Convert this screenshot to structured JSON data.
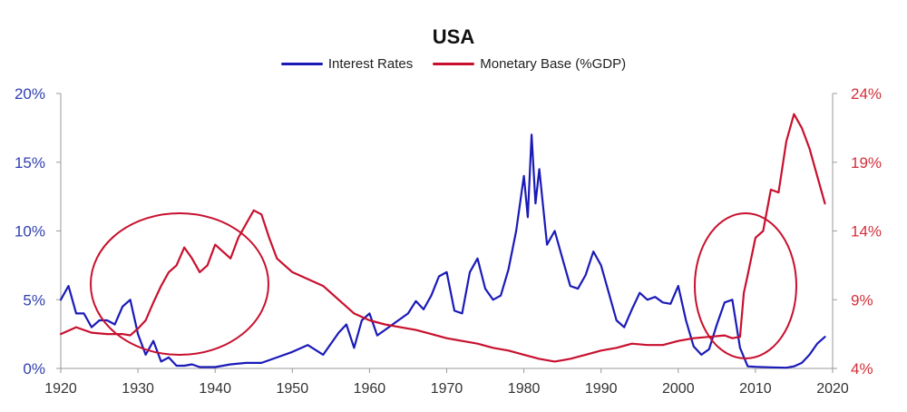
{
  "chart_data": {
    "type": "line",
    "title": "USA",
    "legend_position": "top-center",
    "grid": false,
    "x_axis": {
      "range": [
        1920,
        2020
      ],
      "ticks": [
        "1920",
        "1930",
        "1940",
        "1950",
        "1960",
        "1970",
        "1980",
        "1990",
        "2000",
        "2010",
        "2020"
      ]
    },
    "y_left": {
      "range": [
        0,
        20
      ],
      "ticks": [
        "0%",
        "5%",
        "10%",
        "15%",
        "20%"
      ],
      "color": "#2f3fb0"
    },
    "y_right": {
      "range": [
        4,
        24
      ],
      "ticks": [
        "4%",
        "9%",
        "14%",
        "19%",
        "24%"
      ],
      "color": "#d32f3a"
    },
    "series": [
      {
        "name": "Interest Rates",
        "axis": "left",
        "color": "#1a1ab8",
        "x": [
          1920,
          1921,
          1922,
          1923,
          1924,
          1925,
          1926,
          1927,
          1928,
          1929,
          1930,
          1931,
          1932,
          1933,
          1934,
          1935,
          1936,
          1937,
          1938,
          1940,
          1942,
          1944,
          1946,
          1948,
          1950,
          1952,
          1954,
          1956,
          1957,
          1958,
          1959,
          1960,
          1961,
          1962,
          1963,
          1965,
          1966,
          1967,
          1968,
          1969,
          1970,
          1971,
          1972,
          1973,
          1974,
          1975,
          1976,
          1977,
          1978,
          1979,
          1980,
          1980.5,
          1981,
          1981.5,
          1982,
          1983,
          1984,
          1985,
          1986,
          1987,
          1988,
          1989,
          1990,
          1991,
          1992,
          1993,
          1994,
          1995,
          1996,
          1997,
          1998,
          1999,
          2000,
          2001,
          2002,
          2003,
          2004,
          2005,
          2006,
          2007,
          2008,
          2009,
          2010,
          2012,
          2014,
          2015,
          2016,
          2017,
          2018,
          2019
        ],
        "values": [
          5.0,
          6.0,
          4.0,
          4.0,
          3.0,
          3.5,
          3.5,
          3.2,
          4.5,
          5.0,
          2.5,
          1.0,
          2.0,
          0.5,
          0.8,
          0.2,
          0.2,
          0.3,
          0.1,
          0.1,
          0.3,
          0.4,
          0.4,
          0.8,
          1.2,
          1.7,
          1.0,
          2.6,
          3.2,
          1.5,
          3.5,
          4.0,
          2.4,
          2.8,
          3.2,
          4.0,
          4.9,
          4.3,
          5.3,
          6.7,
          7.0,
          4.2,
          4.0,
          7.0,
          8.0,
          5.8,
          5.0,
          5.3,
          7.2,
          10.0,
          14.0,
          11.0,
          17.0,
          12.0,
          14.5,
          9.0,
          10.0,
          8.0,
          6.0,
          5.8,
          6.8,
          8.5,
          7.5,
          5.5,
          3.5,
          3.0,
          4.3,
          5.5,
          5.0,
          5.2,
          4.8,
          4.7,
          6.0,
          3.5,
          1.6,
          1.0,
          1.4,
          3.2,
          4.8,
          5.0,
          1.5,
          0.15,
          0.12,
          0.08,
          0.05,
          0.15,
          0.4,
          1.0,
          1.8,
          2.3
        ]
      },
      {
        "name": "Monetary Base (%GDP)",
        "axis": "right",
        "color": "#c8102e",
        "x": [
          1920,
          1922,
          1924,
          1926,
          1928,
          1929,
          1930,
          1931,
          1932,
          1933,
          1934,
          1935,
          1936,
          1937,
          1938,
          1939,
          1940,
          1941,
          1942,
          1943,
          1944,
          1945,
          1946,
          1947,
          1948,
          1950,
          1952,
          1954,
          1956,
          1958,
          1960,
          1962,
          1964,
          1966,
          1968,
          1970,
          1972,
          1974,
          1976,
          1978,
          1980,
          1982,
          1984,
          1986,
          1988,
          1990,
          1992,
          1994,
          1996,
          1998,
          2000,
          2002,
          2004,
          2006,
          2007,
          2008,
          2008.5,
          2009,
          2010,
          2011,
          2012,
          2013,
          2014,
          2015,
          2016,
          2017,
          2018,
          2019
        ],
        "values": [
          6.5,
          7.0,
          6.6,
          6.5,
          6.5,
          6.4,
          6.9,
          7.5,
          8.8,
          10.0,
          11.0,
          11.5,
          12.8,
          12.0,
          11.0,
          11.5,
          13.0,
          12.5,
          12.0,
          13.5,
          14.5,
          15.5,
          15.2,
          13.5,
          12.0,
          11.0,
          10.5,
          10.0,
          9.0,
          8.0,
          7.5,
          7.2,
          7.0,
          6.8,
          6.5,
          6.2,
          6.0,
          5.8,
          5.5,
          5.3,
          5.0,
          4.7,
          4.5,
          4.7,
          5.0,
          5.3,
          5.5,
          5.8,
          5.7,
          5.7,
          6.0,
          6.2,
          6.3,
          6.4,
          6.2,
          6.3,
          9.5,
          10.8,
          13.5,
          14.0,
          17.0,
          16.8,
          20.5,
          22.5,
          21.5,
          20.0,
          18.0,
          16.0
        ]
      }
    ]
  }
}
